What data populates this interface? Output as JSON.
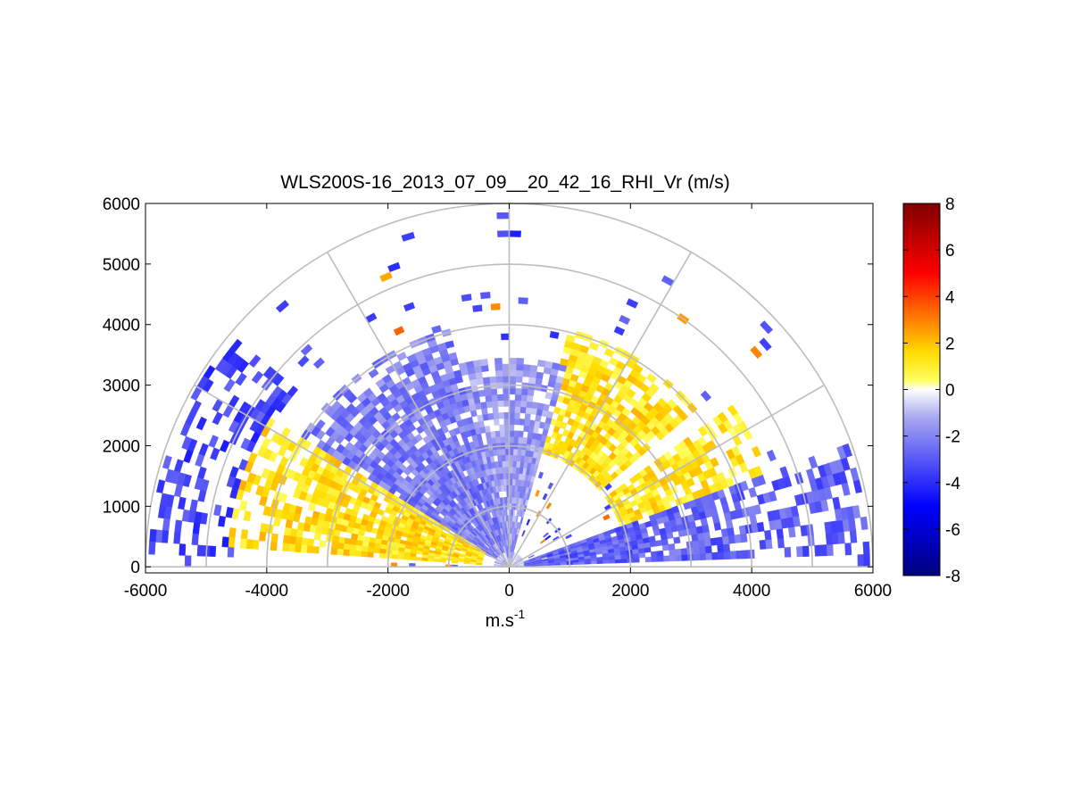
{
  "chart_data": {
    "type": "heatmap",
    "subtype": "polar RHI scan (range-height indicator), half-disc sector plot",
    "title": "WLS200S-16_2013_07_09__20_42_16_RHI_Vr (m/s)",
    "xlabel_base": "m.s",
    "xlabel_exponent": "-1",
    "x_ticks": [
      -6000,
      -4000,
      -2000,
      0,
      2000,
      4000,
      6000
    ],
    "y_ticks": [
      0,
      1000,
      2000,
      3000,
      4000,
      5000,
      6000
    ],
    "xlim": [
      -6000,
      6000
    ],
    "ylim": [
      -100,
      6000
    ],
    "polar_grid": {
      "range_rings": [
        1000,
        2000,
        3000,
        4000,
        5000,
        6000
      ],
      "spoke_angles_deg": [
        0,
        30,
        60,
        90,
        120,
        150,
        180
      ],
      "grid": true
    },
    "colorbar": {
      "ticks": [
        -8,
        -6,
        -4,
        -2,
        0,
        2,
        4,
        6,
        8
      ],
      "range": [
        -8,
        8
      ],
      "colormap": "blue-white-yellow-red diverging",
      "stops": [
        {
          "v": -8,
          "color": "#00007f"
        },
        {
          "v": -5,
          "color": "#0000ff"
        },
        {
          "v": -1.2,
          "color": "#a8a8f0"
        },
        {
          "v": 0,
          "color": "#ffffff"
        },
        {
          "v": 0.4,
          "color": "#ffff60"
        },
        {
          "v": 1.6,
          "color": "#ffdc00"
        },
        {
          "v": 2.8,
          "color": "#ff8c00"
        },
        {
          "v": 5,
          "color": "#ff0000"
        },
        {
          "v": 8,
          "color": "#7f0000"
        }
      ]
    },
    "velocity_regions": [
      {
        "azimuth_deg": [
          148,
          176
        ],
        "range_m": [
          500,
          4600
        ],
        "vr": 1.4,
        "description": "west low-level positive (yellow/orange) band"
      },
      {
        "azimuth_deg": [
          140,
          178
        ],
        "range_m": [
          4600,
          5900
        ],
        "vr": -3.5,
        "description": "west far-range negative (blue)"
      },
      {
        "azimuth_deg": [
          104,
          150
        ],
        "range_m": [
          300,
          4000
        ],
        "vr": -2.2,
        "description": "north-west negative (blue) sector"
      },
      {
        "azimuth_deg": [
          74,
          104
        ],
        "range_m": [
          200,
          3400
        ],
        "vr": -1.6,
        "description": "near-vertical light blue"
      },
      {
        "azimuth_deg": [
          40,
          75
        ],
        "range_m": [
          2000,
          4000
        ],
        "vr": 1.3,
        "description": "north-east positive (yellow) sector"
      },
      {
        "azimuth_deg": [
          20,
          35
        ],
        "range_m": [
          2000,
          4500
        ],
        "vr": 1.2,
        "description": "east positive (yellow) band"
      },
      {
        "azimuth_deg": [
          2,
          20
        ],
        "range_m": [
          300,
          6000
        ],
        "vr": -2.8,
        "description": "east low-level negative (blue) band"
      }
    ]
  }
}
